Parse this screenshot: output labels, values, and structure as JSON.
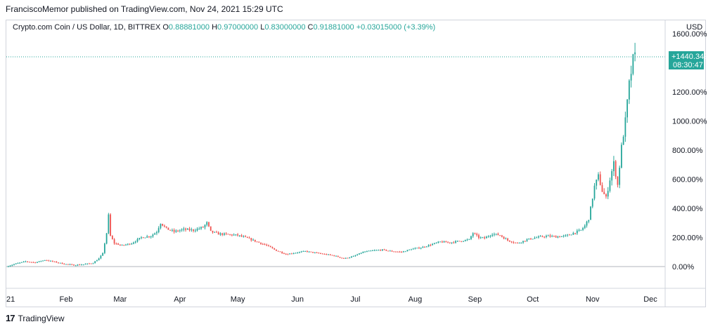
{
  "header": {
    "published_text": "FranciscoMemor published on TradingView.com, Nov 24, 2021 15:29 UTC"
  },
  "legend": {
    "symbol": "Crypto.com Coin / US Dollar, 1D, BITTREX",
    "o_label": "O",
    "o_value": "0.88881000",
    "h_label": "H",
    "h_value": "0.97000000",
    "l_label": "L",
    "l_value": "0.83000000",
    "c_label": "C",
    "c_value": "0.91881000",
    "change": "+0.03015000 (+3.39%)"
  },
  "price_label": {
    "currency": "USD",
    "value": "+1440.34%",
    "countdown": "08:30:47"
  },
  "footer": {
    "logo": "17",
    "brand": "TradingView"
  },
  "colors": {
    "up": "#26a69a",
    "down": "#ef5350",
    "text": "#131722",
    "grid": "#d1d4dc"
  },
  "chart_data": {
    "type": "candlestick",
    "y_unit": "percent change",
    "ylim": [
      -60,
      1620
    ],
    "y_ticks": [
      0,
      200,
      400,
      600,
      800,
      1000,
      1200,
      1600
    ],
    "y_tick_labels": [
      "0.00%",
      "200.00%",
      "400.00%",
      "600.00%",
      "800.00%",
      "1000.00%",
      "1200.00%",
      "1600.00%"
    ],
    "x_ticks": [
      {
        "label": "21",
        "day": 0
      },
      {
        "label": "Feb",
        "day": 31
      },
      {
        "label": "Mar",
        "day": 59
      },
      {
        "label": "Apr",
        "day": 90
      },
      {
        "label": "May",
        "day": 120
      },
      {
        "label": "Jun",
        "day": 151
      },
      {
        "label": "Jul",
        "day": 181
      },
      {
        "label": "Aug",
        "day": 212
      },
      {
        "label": "Sep",
        "day": 243
      },
      {
        "label": "Oct",
        "day": 273
      },
      {
        "label": "Nov",
        "day": 304
      },
      {
        "label": "Dec",
        "day": 334
      }
    ],
    "x_range": [
      0,
      338
    ],
    "baseline": 0,
    "last_value": 1440.34,
    "closes": [
      [
        0,
        0
      ],
      [
        5,
        20
      ],
      [
        10,
        35
      ],
      [
        15,
        28
      ],
      [
        20,
        45
      ],
      [
        25,
        32
      ],
      [
        30,
        18
      ],
      [
        35,
        10
      ],
      [
        40,
        15
      ],
      [
        45,
        25
      ],
      [
        48,
        55
      ],
      [
        50,
        90
      ],
      [
        52,
        230
      ],
      [
        53,
        350
      ],
      [
        54,
        210
      ],
      [
        56,
        160
      ],
      [
        60,
        145
      ],
      [
        65,
        160
      ],
      [
        70,
        200
      ],
      [
        75,
        210
      ],
      [
        78,
        240
      ],
      [
        80,
        300
      ],
      [
        83,
        260
      ],
      [
        87,
        240
      ],
      [
        92,
        255
      ],
      [
        97,
        250
      ],
      [
        102,
        270
      ],
      [
        104,
        300
      ],
      [
        106,
        240
      ],
      [
        110,
        225
      ],
      [
        115,
        220
      ],
      [
        120,
        215
      ],
      [
        125,
        195
      ],
      [
        130,
        170
      ],
      [
        135,
        145
      ],
      [
        140,
        110
      ],
      [
        145,
        85
      ],
      [
        150,
        95
      ],
      [
        155,
        105
      ],
      [
        160,
        95
      ],
      [
        165,
        85
      ],
      [
        170,
        75
      ],
      [
        175,
        55
      ],
      [
        180,
        70
      ],
      [
        185,
        100
      ],
      [
        190,
        110
      ],
      [
        195,
        115
      ],
      [
        200,
        105
      ],
      [
        205,
        100
      ],
      [
        210,
        120
      ],
      [
        215,
        130
      ],
      [
        220,
        150
      ],
      [
        225,
        170
      ],
      [
        230,
        165
      ],
      [
        235,
        175
      ],
      [
        240,
        185
      ],
      [
        242,
        230
      ],
      [
        245,
        200
      ],
      [
        248,
        195
      ],
      [
        252,
        225
      ],
      [
        256,
        215
      ],
      [
        260,
        180
      ],
      [
        265,
        160
      ],
      [
        270,
        185
      ],
      [
        275,
        200
      ],
      [
        280,
        210
      ],
      [
        285,
        205
      ],
      [
        290,
        210
      ],
      [
        295,
        235
      ],
      [
        298,
        250
      ],
      [
        300,
        280
      ],
      [
        302,
        330
      ],
      [
        303,
        400
      ],
      [
        305,
        550
      ],
      [
        307,
        620
      ],
      [
        309,
        520
      ],
      [
        311,
        470
      ],
      [
        313,
        600
      ],
      [
        315,
        710
      ],
      [
        317,
        560
      ],
      [
        319,
        820
      ],
      [
        321,
        1000
      ],
      [
        323,
        1250
      ],
      [
        325,
        1420
      ],
      [
        326,
        1440.34
      ]
    ]
  }
}
